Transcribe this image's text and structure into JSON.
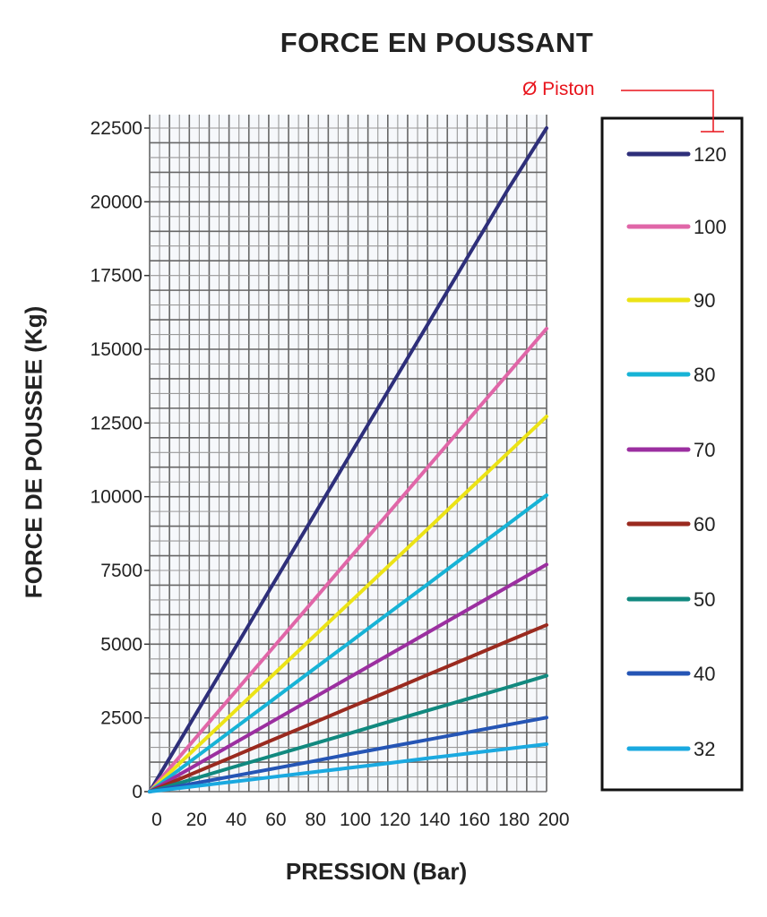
{
  "chart_data": {
    "type": "line",
    "title": "FORCE EN POUSSANT",
    "xlabel": "PRESSION (Bar)",
    "ylabel": "FORCE DE POUSSEE (Kg)",
    "xlim": [
      0,
      200
    ],
    "ylim": [
      0,
      22500
    ],
    "xticks": [
      0,
      20,
      40,
      60,
      80,
      100,
      120,
      140,
      160,
      180,
      200
    ],
    "yticks": [
      0,
      2500,
      5000,
      7500,
      10000,
      12500,
      15000,
      17500,
      20000,
      22500
    ],
    "grid": true,
    "legend_title": "Ø Piston",
    "legend_position": "right",
    "x": [
      0,
      20,
      40,
      60,
      80,
      100,
      120,
      140,
      160,
      180,
      200
    ],
    "series": [
      {
        "name": "120",
        "color": "#2e2f7a",
        "values": [
          0,
          2260,
          4520,
          6790,
          9050,
          11310,
          13570,
          15830,
          18100,
          20360,
          22500
        ]
      },
      {
        "name": "100",
        "color": "#e066a8",
        "values": [
          0,
          1570,
          3140,
          4710,
          6280,
          7850,
          9420,
          10990,
          12560,
          14130,
          15700
        ]
      },
      {
        "name": "90",
        "color": "#ece316",
        "values": [
          0,
          1270,
          2540,
          3820,
          5090,
          6360,
          7630,
          8900,
          10180,
          11450,
          12720
        ]
      },
      {
        "name": "80",
        "color": "#17b3d6",
        "values": [
          0,
          1000,
          2010,
          3010,
          4020,
          5020,
          6030,
          7030,
          8040,
          9040,
          10050
        ]
      },
      {
        "name": "70",
        "color": "#9b2fa0",
        "values": [
          0,
          770,
          1540,
          2310,
          3080,
          3850,
          4620,
          5390,
          6160,
          6930,
          7700
        ]
      },
      {
        "name": "60",
        "color": "#9a2a1f",
        "values": [
          0,
          565,
          1130,
          1700,
          2260,
          2830,
          3390,
          3960,
          4520,
          5090,
          5650
        ]
      },
      {
        "name": "50",
        "color": "#11897f",
        "values": [
          0,
          390,
          790,
          1180,
          1570,
          1960,
          2360,
          2750,
          3140,
          3530,
          3930
        ]
      },
      {
        "name": "40",
        "color": "#2555b5",
        "values": [
          0,
          250,
          500,
          750,
          1000,
          1260,
          1510,
          1760,
          2010,
          2260,
          2510
        ]
      },
      {
        "name": "32",
        "color": "#1aa9e0",
        "values": [
          0,
          160,
          320,
          480,
          640,
          800,
          960,
          1130,
          1290,
          1450,
          1610
        ]
      }
    ]
  }
}
